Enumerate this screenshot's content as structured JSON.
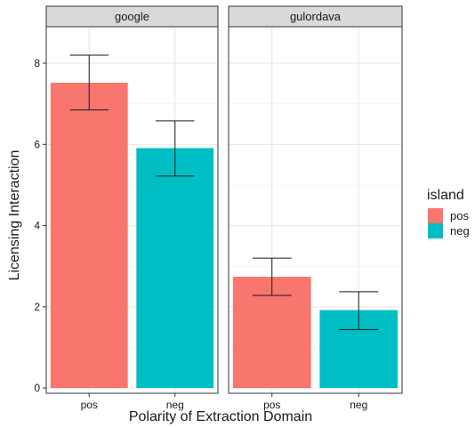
{
  "chart_data": {
    "type": "bar",
    "facets": [
      "google",
      "gulordava"
    ],
    "categories": [
      "pos",
      "neg"
    ],
    "series": [
      {
        "facet": "google",
        "values": [
          7.52,
          5.91
        ],
        "error_low": [
          6.85,
          5.22
        ],
        "error_high": [
          8.2,
          6.58
        ]
      },
      {
        "facet": "gulordava",
        "values": [
          2.74,
          1.92
        ],
        "error_low": [
          2.28,
          1.44
        ],
        "error_high": [
          3.2,
          2.37
        ]
      }
    ],
    "xlabel": "Polarity of Extraction Domain",
    "ylabel": "Licensing Interaction",
    "yticks": [
      "0",
      "2",
      "4",
      "6",
      "8"
    ],
    "ylim": [
      -0.13,
      8.9
    ],
    "grid": true,
    "legend": {
      "title": "island",
      "position": "right",
      "entries": [
        {
          "label": "pos",
          "color": "#F8766D"
        },
        {
          "label": "neg",
          "color": "#00BFC4"
        }
      ]
    }
  }
}
